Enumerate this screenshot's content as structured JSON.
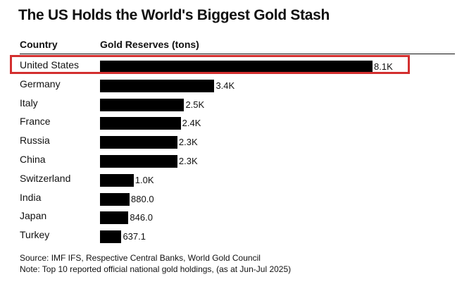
{
  "chart_data": {
    "type": "bar",
    "orientation": "horizontal",
    "title": "The US Holds the World's Biggest Gold Stash",
    "column_headers": {
      "category": "Country",
      "value": "Gold Reserves (tons)"
    },
    "categories": [
      "United States",
      "Germany",
      "Italy",
      "France",
      "Russia",
      "China",
      "Switzerland",
      "India",
      "Japan",
      "Turkey"
    ],
    "values": [
      8100,
      3400,
      2500,
      2400,
      2300,
      2300,
      1000,
      880.0,
      846.0,
      637.1
    ],
    "value_labels": [
      "8.1K",
      "3.4K",
      "2.5K",
      "2.4K",
      "2.3K",
      "2.3K",
      "1.0K",
      "880.0",
      "846.0",
      "637.1"
    ],
    "highlighted_category": "United States",
    "xlim": [
      0,
      8100
    ]
  },
  "colors": {
    "bar": "#000000",
    "highlight": "#d32f2f",
    "text": "#111111"
  },
  "footer": {
    "source": "Source: IMF IFS, Respective Central Banks, World Gold Council",
    "note": "Note: Top 10 reported official national gold holdings, (as at Jun-Jul 2025)"
  }
}
